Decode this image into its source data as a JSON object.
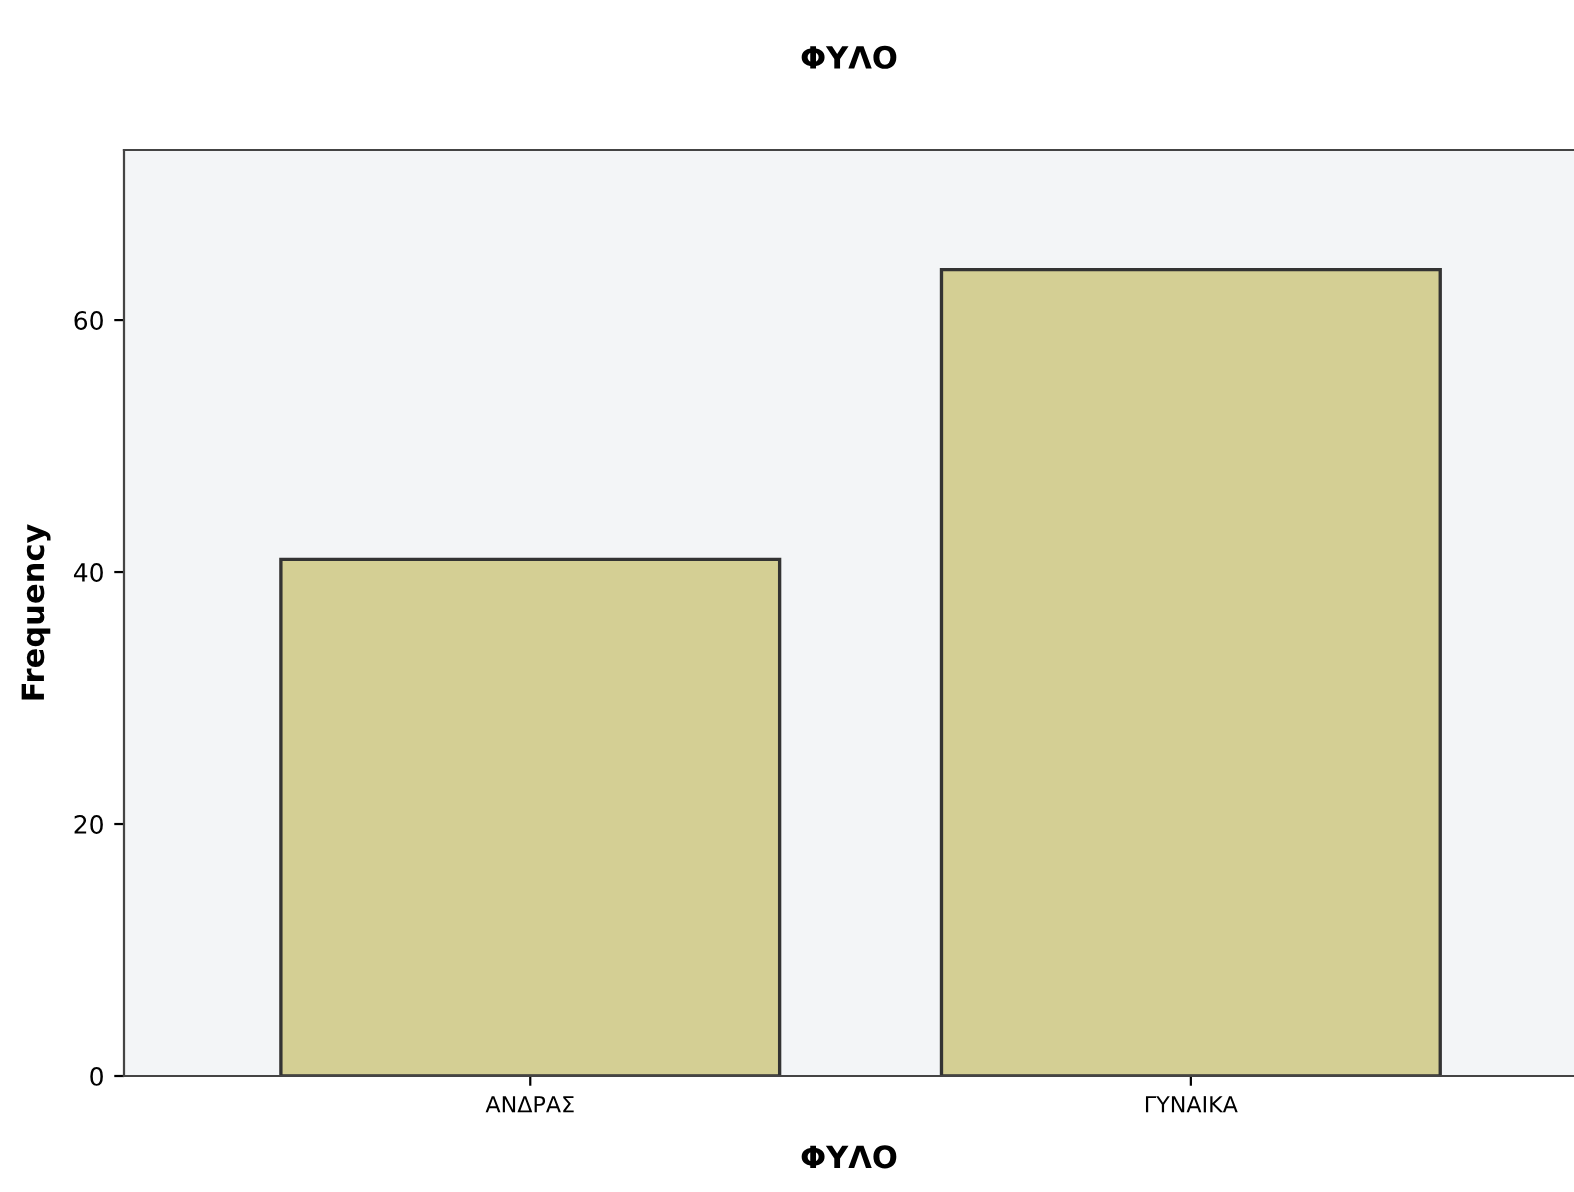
{
  "chart_data": {
    "type": "bar",
    "title": "ΦΥΛΟ",
    "xlabel": "ΦΥΛΟ",
    "ylabel": "Frequency",
    "categories": [
      "ΑΝΔΡΑΣ",
      "ΓΥΝΑΙΚΑ"
    ],
    "values": [
      41,
      64
    ],
    "color": "#d4cf94",
    "ylim": [
      0,
      73.5
    ],
    "yticks": [
      0,
      20,
      40,
      60
    ],
    "grid": false
  }
}
